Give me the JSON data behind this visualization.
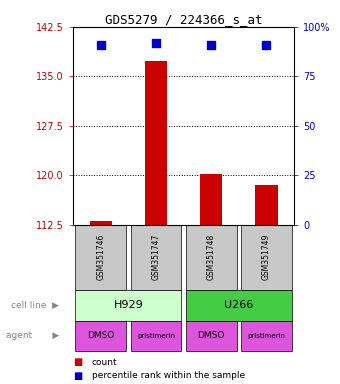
{
  "title": "GDS5279 / 224366_s_at",
  "samples": [
    "GSM351746",
    "GSM351747",
    "GSM351748",
    "GSM351749"
  ],
  "counts": [
    113.1,
    137.3,
    120.2,
    118.5
  ],
  "percentile_ranks": [
    91,
    92,
    91,
    91
  ],
  "ylim_left": [
    112.5,
    142.5
  ],
  "yticks_left": [
    112.5,
    120,
    127.5,
    135,
    142.5
  ],
  "ylim_right": [
    0,
    100
  ],
  "yticks_right": [
    0,
    25,
    50,
    75,
    100
  ],
  "ytick_labels_right": [
    "0",
    "25",
    "50",
    "75",
    "100%"
  ],
  "bar_color": "#cc0000",
  "dot_color": "#0000cc",
  "cell_line_colors": {
    "H929": "#ccffcc",
    "U266": "#44cc44"
  },
  "agents": [
    "DMSO",
    "pristimerin",
    "DMSO",
    "pristimerin"
  ],
  "agent_color": "#dd55dd",
  "sample_box_color": "#c8c8c8",
  "left_tick_color": "#cc0000",
  "right_tick_color": "#0000cc",
  "grid_yticks": [
    120,
    127.5,
    135
  ]
}
